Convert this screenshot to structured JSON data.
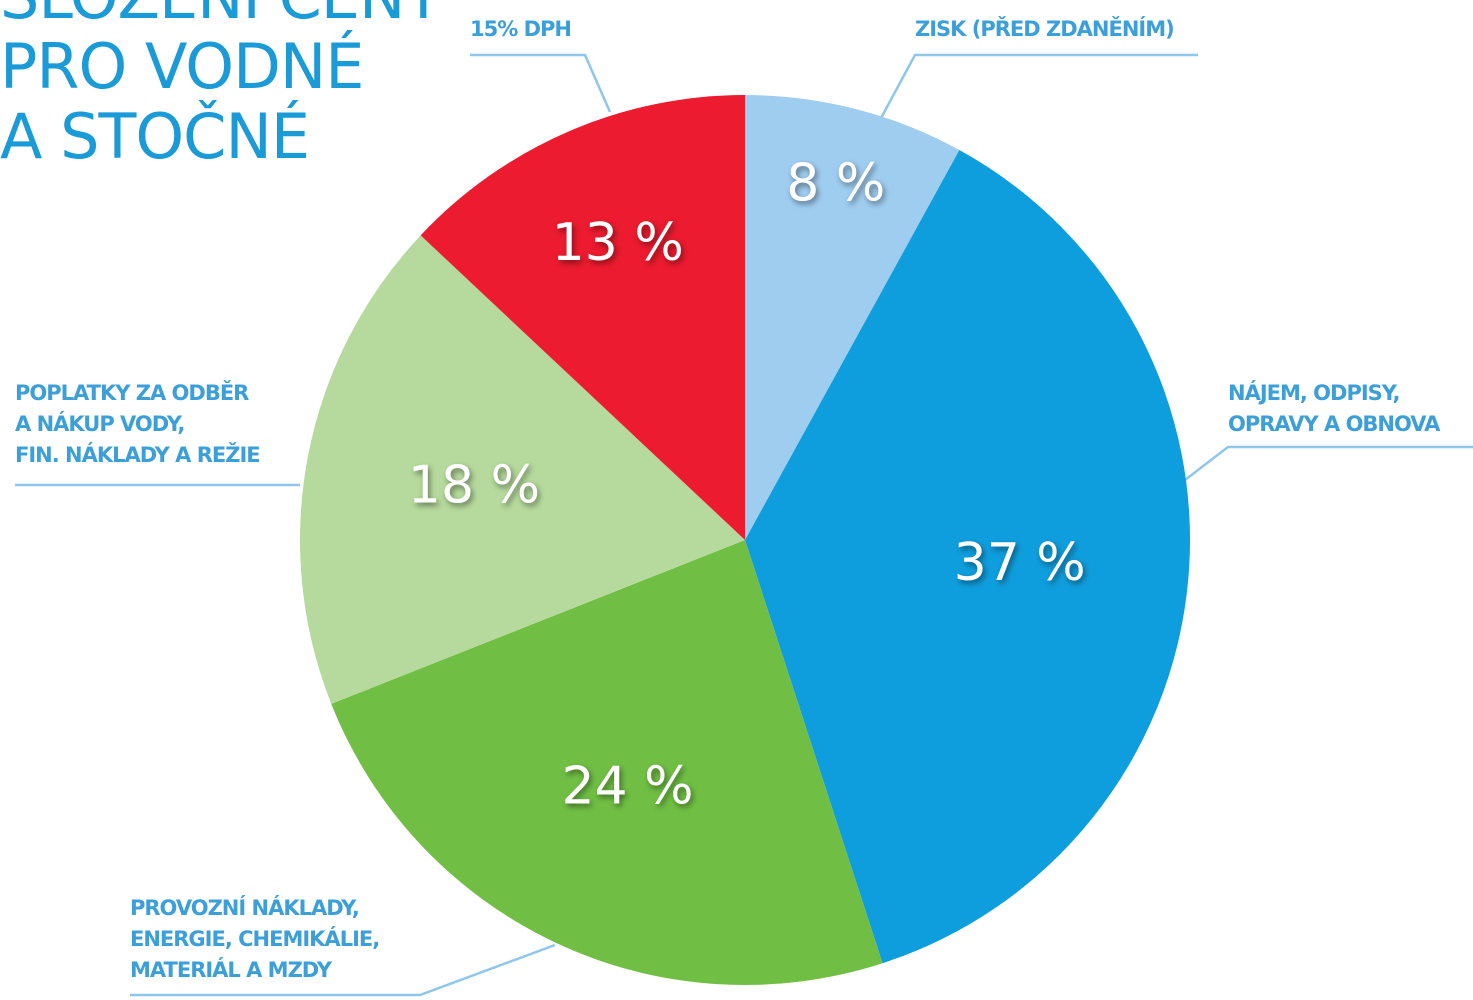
{
  "chart_data": {
    "type": "pie",
    "title": "SLOŽENÍ CENY\nPRO VODNÉ\nA STOČNÉ",
    "categories": [
      "ZISK (PŘED ZDANĚNÍM)",
      "NÁJEM, ODPISY,\nOPRAVY A OBNOVA",
      "PROVOZNÍ NÁKLADY,\nENERGIE, CHEMIKÁLIE,\nMATERIÁL A MZDY",
      "POPLATKY ZA ODBĚR\nA NÁKUP VODY,\nFIN. NÁKLADY A REŽIE",
      "15% DPH"
    ],
    "values": [
      8,
      37,
      24,
      18,
      13
    ],
    "value_labels": [
      "8 %",
      "37 %",
      "24 %",
      "18 %",
      "13 %"
    ],
    "colors": [
      "#9fcdf0",
      "#0f9edd",
      "#70bf44",
      "#b6da9d",
      "#ec1b2f"
    ]
  }
}
